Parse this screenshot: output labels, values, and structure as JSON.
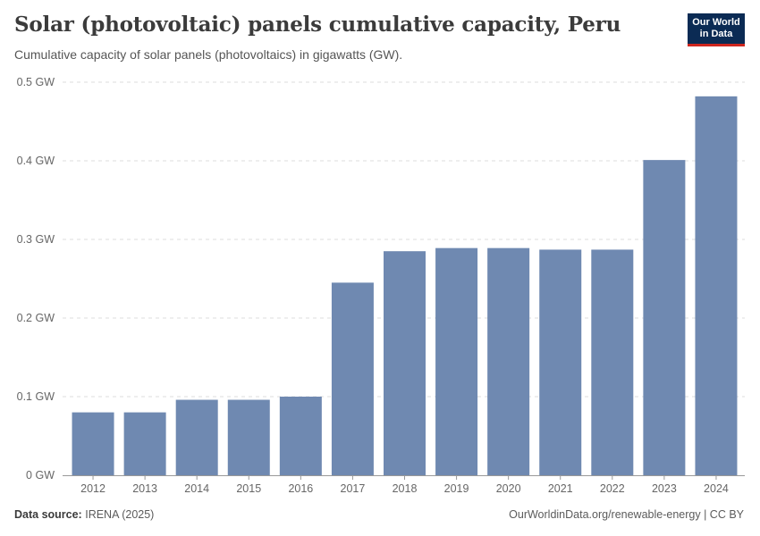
{
  "header": {
    "title": "Solar (photovoltaic) panels cumulative capacity, Peru",
    "subtitle": "Cumulative capacity of solar panels (photovoltaics) in gigawatts (GW).",
    "logo_line1": "Our World",
    "logo_line2": "in Data"
  },
  "footer": {
    "source_label": "Data source:",
    "source_value": "IRENA (2025)",
    "credit": "OurWorldinData.org/renewable-energy | CC BY"
  },
  "colors": {
    "bar": "#6f89b1",
    "grid": "#dddddd",
    "axis": "#999999",
    "tick_text": "#666666"
  },
  "chart_data": {
    "type": "bar",
    "title": "Solar (photovoltaic) panels cumulative capacity, Peru",
    "xlabel": "",
    "ylabel": "",
    "unit": "GW",
    "categories": [
      "2012",
      "2013",
      "2014",
      "2015",
      "2016",
      "2017",
      "2018",
      "2019",
      "2020",
      "2021",
      "2022",
      "2023",
      "2024"
    ],
    "values": [
      0.08,
      0.08,
      0.096,
      0.096,
      0.1,
      0.245,
      0.285,
      0.289,
      0.289,
      0.287,
      0.287,
      0.401,
      0.482
    ],
    "ylim": [
      0,
      0.5
    ],
    "yticks": [
      0,
      0.1,
      0.2,
      0.3,
      0.4,
      0.5
    ],
    "ytick_labels": [
      "0 GW",
      "0.1 GW",
      "0.2 GW",
      "0.3 GW",
      "0.4 GW",
      "0.5 GW"
    ],
    "grid": true
  }
}
